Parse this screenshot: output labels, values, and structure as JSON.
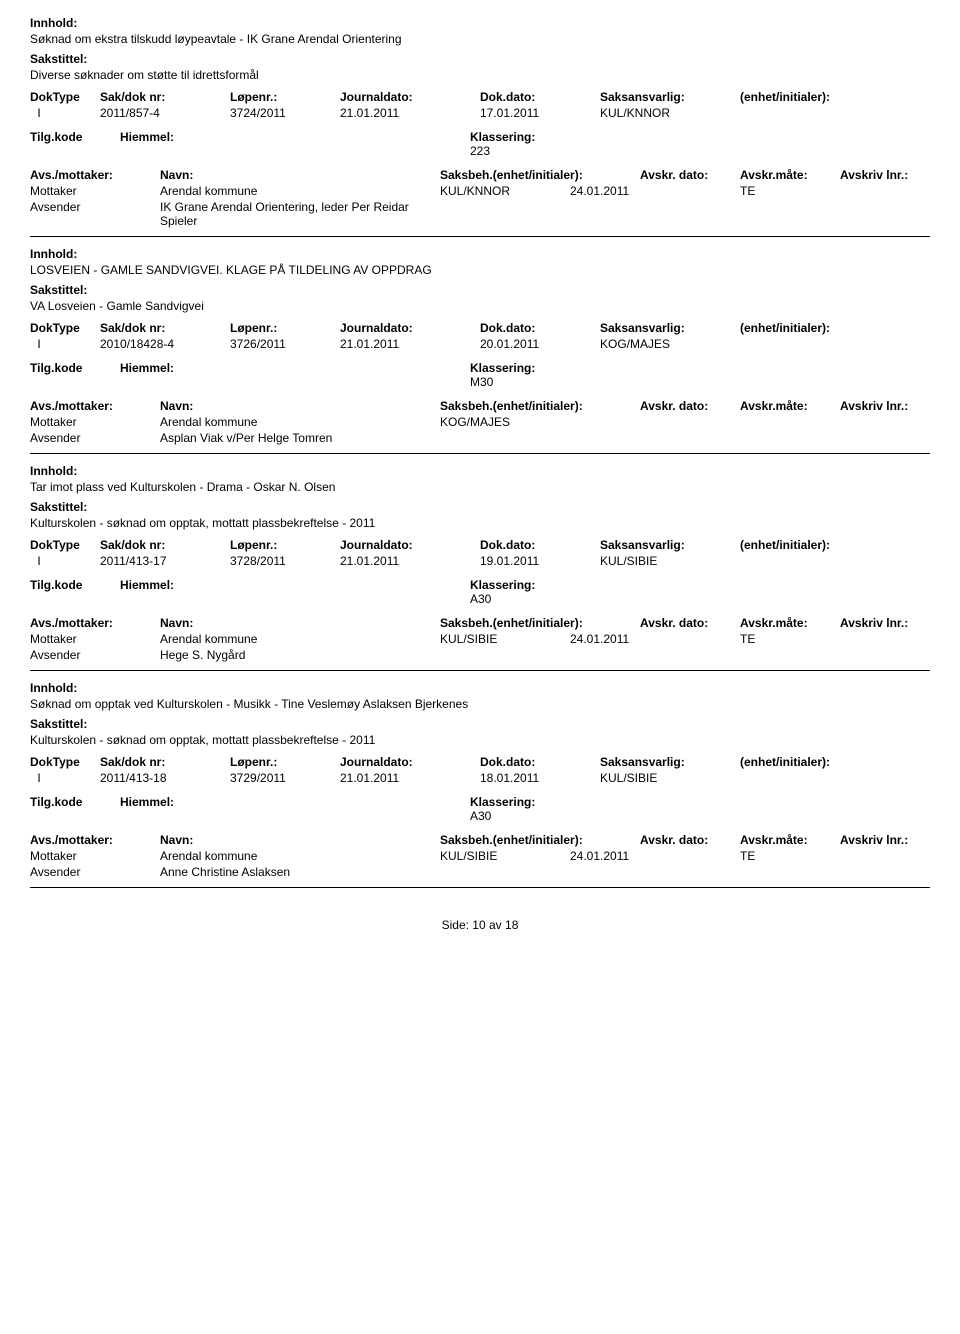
{
  "labels": {
    "innhold": "Innhold:",
    "sakstittel": "Sakstittel:",
    "dokType": "DokType",
    "sakDokNr": "Sak/dok nr:",
    "lopenr": "Løpenr.:",
    "journaldato": "Journaldato:",
    "dokDato": "Dok.dato:",
    "saksansvarlig": "Saksansvarlig:",
    "enhet": "(enhet/initialer):",
    "tilgKode": "Tilg.kode",
    "hjemmel": "Hiemmel:",
    "klassering": "Klassering:",
    "avsMottaker": "Avs./mottaker:",
    "navn": "Navn:",
    "saksbeh": "Saksbeh.(enhet/initialer):",
    "avskrDato": "Avskr. dato:",
    "avskrMate": "Avskr.måte:",
    "avskrivLnr": "Avskriv lnr.:",
    "mottaker": "Mottaker",
    "avsender": "Avsender"
  },
  "footer": {
    "prefix": "Side:",
    "current": "10",
    "sep": "av",
    "total": "18"
  },
  "records": [
    {
      "innhold": "Søknad om ekstra tilskudd løypeavtale - IK Grane Arendal Orientering",
      "sakstittel": "Diverse søknader om støtte til idrettsformål",
      "dokType": "I",
      "sakDokNr": "2011/857-4",
      "lopenr": "3724/2011",
      "journaldato": "21.01.2011",
      "dokDato": "17.01.2011",
      "saksansvarlig": "KUL/KNNOR",
      "klassering": "223",
      "parties": [
        {
          "role": "Mottaker",
          "name": "Arendal kommune",
          "beh": "KUL/KNNOR",
          "date": "24.01.2011",
          "mate": "TE"
        },
        {
          "role": "Avsender",
          "name": "IK Grane Arendal Orientering, leder Per Reidar Spieler",
          "beh": "",
          "date": "",
          "mate": ""
        }
      ]
    },
    {
      "innhold": "LOSVEIEN - GAMLE SANDVIGVEI.  KLAGE PÅ TILDELING AV OPPDRAG",
      "sakstittel": "VA Losveien - Gamle Sandvigvei",
      "dokType": "I",
      "sakDokNr": "2010/18428-4",
      "lopenr": "3726/2011",
      "journaldato": "21.01.2011",
      "dokDato": "20.01.2011",
      "saksansvarlig": "KOG/MAJES",
      "klassering": "M30",
      "parties": [
        {
          "role": "Mottaker",
          "name": "Arendal kommune",
          "beh": "KOG/MAJES",
          "date": "",
          "mate": ""
        },
        {
          "role": "Avsender",
          "name": "Asplan Viak v/Per Helge Tomren",
          "beh": "",
          "date": "",
          "mate": ""
        }
      ]
    },
    {
      "innhold": "Tar imot plass ved Kulturskolen - Drama - Oskar N. Olsen",
      "sakstittel": "Kulturskolen - søknad om opptak, mottatt plassbekreftelse - 2011",
      "dokType": "I",
      "sakDokNr": "2011/413-17",
      "lopenr": "3728/2011",
      "journaldato": "21.01.2011",
      "dokDato": "19.01.2011",
      "saksansvarlig": "KUL/SIBIE",
      "klassering": "A30",
      "parties": [
        {
          "role": "Mottaker",
          "name": "Arendal kommune",
          "beh": "KUL/SIBIE",
          "date": "24.01.2011",
          "mate": "TE"
        },
        {
          "role": "Avsender",
          "name": "Hege S. Nygård",
          "beh": "",
          "date": "",
          "mate": ""
        }
      ]
    },
    {
      "innhold": "Søknad om opptak ved Kulturskolen - Musikk - Tine Veslemøy Aslaksen Bjerkenes",
      "sakstittel": "Kulturskolen - søknad om opptak, mottatt plassbekreftelse - 2011",
      "dokType": "I",
      "sakDokNr": "2011/413-18",
      "lopenr": "3729/2011",
      "journaldato": "21.01.2011",
      "dokDato": "18.01.2011",
      "saksansvarlig": "KUL/SIBIE",
      "klassering": "A30",
      "parties": [
        {
          "role": "Mottaker",
          "name": "Arendal kommune",
          "beh": "KUL/SIBIE",
          "date": "24.01.2011",
          "mate": "TE"
        },
        {
          "role": "Avsender",
          "name": "Anne Christine Aslaksen",
          "beh": "",
          "date": "",
          "mate": ""
        }
      ]
    }
  ]
}
